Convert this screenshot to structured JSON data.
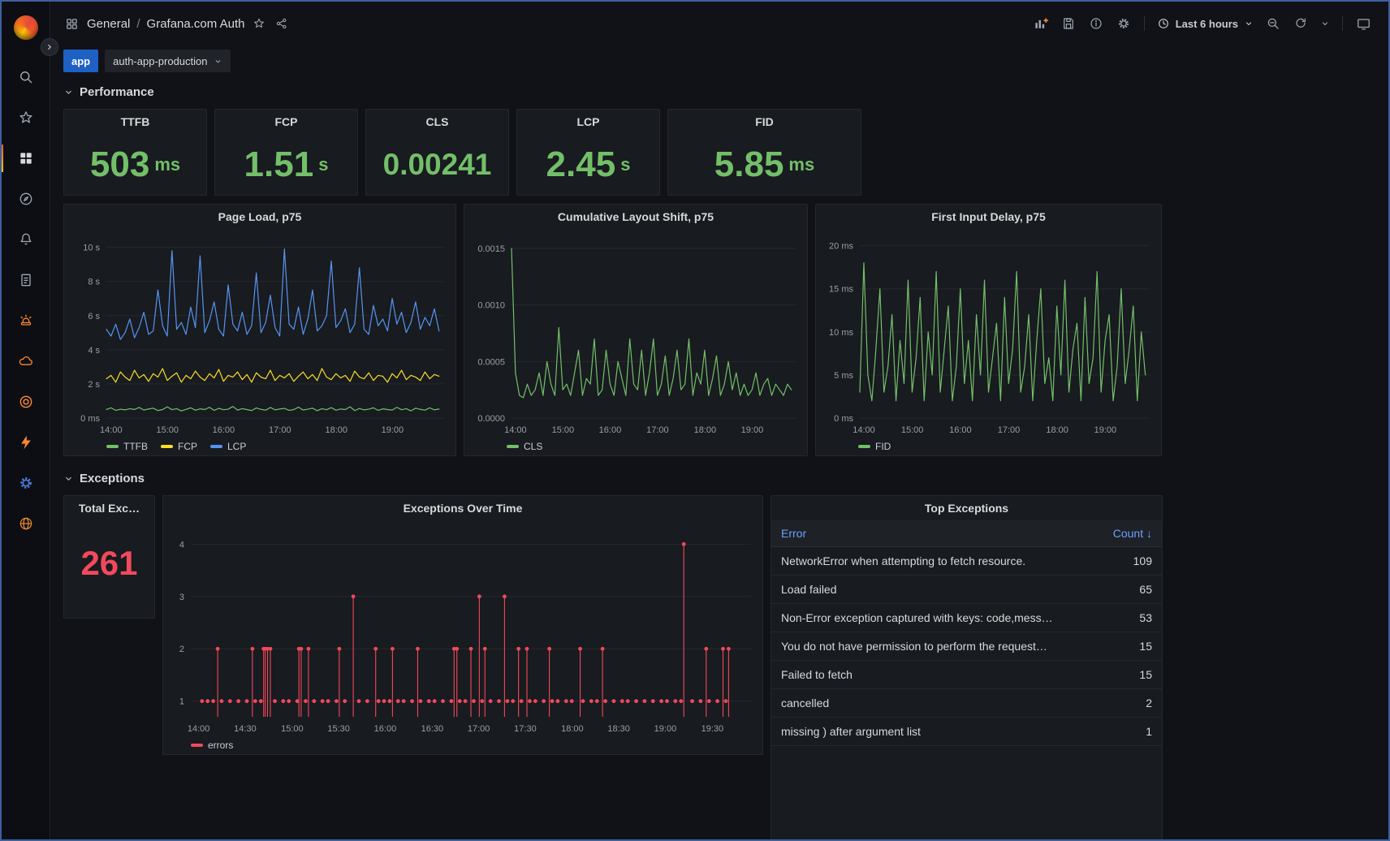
{
  "colors": {
    "green": "#73bf69",
    "yellow": "#fade2a",
    "blue": "#5794f2",
    "red": "#f2495c",
    "link_blue": "#6e9fff",
    "accent_orange": "#ff8833",
    "panel_bg": "#181b1f",
    "page_bg": "#111217"
  },
  "sidebar": {
    "items": [
      "grafana-logo",
      "search",
      "starred",
      "dashboards",
      "explore",
      "alerting",
      "document",
      "siren",
      "cloud",
      "target",
      "bolt",
      "gear",
      "globe"
    ],
    "active_item": "dashboards"
  },
  "header": {
    "breadcrumb": {
      "section": "General",
      "separator": "/",
      "title": "Grafana.com Auth"
    },
    "time_range": "Last 6 hours"
  },
  "variables": {
    "label": "app",
    "value": "auth-app-production"
  },
  "sections": {
    "performance": "Performance",
    "exceptions": "Exceptions"
  },
  "stats": [
    {
      "title": "TTFB",
      "value": "503",
      "unit": "ms"
    },
    {
      "title": "FCP",
      "value": "1.51",
      "unit": "s"
    },
    {
      "title": "CLS",
      "value": "0.00241",
      "unit": ""
    },
    {
      "title": "LCP",
      "value": "2.45",
      "unit": "s"
    },
    {
      "title": "FID",
      "value": "5.85",
      "unit": "ms"
    }
  ],
  "total_exceptions": {
    "title": "Total Exc…",
    "value": "261"
  },
  "top_exceptions": {
    "title": "Top Exceptions",
    "columns": {
      "error": "Error",
      "count": "Count ↓"
    },
    "rows": [
      {
        "error": "NetworkError when attempting to fetch resource.",
        "count": "109"
      },
      {
        "error": "Load failed",
        "count": "65"
      },
      {
        "error": "Non-Error exception captured with keys: code,mess…",
        "count": "53"
      },
      {
        "error": "You do not have permission to perform the request…",
        "count": "15"
      },
      {
        "error": "Failed to fetch",
        "count": "15"
      },
      {
        "error": "cancelled",
        "count": "2"
      },
      {
        "error": "missing ) after argument list",
        "count": "1"
      }
    ]
  },
  "chart_data": [
    {
      "type": "line",
      "title": "Page Load, p75",
      "ylim": [
        0,
        10.6
      ],
      "ml": 48,
      "yticks": [
        {
          "v": 0,
          "label": "0 ms"
        },
        {
          "v": 2,
          "label": "2 s"
        },
        {
          "v": 4,
          "label": "4 s"
        },
        {
          "v": 6,
          "label": "6 s"
        },
        {
          "v": 8,
          "label": "8 s"
        },
        {
          "v": 10,
          "label": "10 s"
        }
      ],
      "xticks": [
        {
          "f": 0.014,
          "label": "14:00"
        },
        {
          "f": 0.181,
          "label": "15:00"
        },
        {
          "f": 0.347,
          "label": "16:00"
        },
        {
          "f": 0.514,
          "label": "17:00"
        },
        {
          "f": 0.681,
          "label": "18:00"
        },
        {
          "f": 0.847,
          "label": "19:00"
        }
      ],
      "series": [
        {
          "name": "TTFB",
          "color": "#73bf69",
          "values": [
            0.5,
            0.6,
            0.45,
            0.52,
            0.48,
            0.55,
            0.5,
            0.62,
            0.47,
            0.53,
            0.58,
            0.44,
            0.5,
            0.66,
            0.49,
            0.55,
            0.42,
            0.51,
            0.6,
            0.46,
            0.54,
            0.5,
            0.63,
            0.45,
            0.57,
            0.49,
            0.52,
            0.68,
            0.47,
            0.55,
            0.5,
            0.44,
            0.59,
            0.51,
            0.46,
            0.62,
            0.48,
            0.53,
            0.57,
            0.45,
            0.5,
            0.64,
            0.47,
            0.52,
            0.58,
            0.43,
            0.55,
            0.49,
            0.61,
            0.46,
            0.53,
            0.5,
            0.66,
            0.44,
            0.56,
            0.48,
            0.52,
            0.6,
            0.45,
            0.54,
            0.5,
            0.47,
            0.63,
            0.49,
            0.55,
            0.42,
            0.58,
            0.51,
            0.46,
            0.6,
            0.48,
            0.53
          ]
        },
        {
          "name": "FCP",
          "color": "#fade2a",
          "values": [
            2.3,
            2.5,
            2.1,
            2.7,
            2.4,
            2.2,
            2.8,
            2.35,
            2.55,
            2.15,
            2.6,
            2.4,
            2.9,
            2.2,
            2.45,
            2.65,
            2.1,
            2.5,
            2.3,
            2.75,
            2.4,
            2.2,
            2.6,
            2.35,
            2.85,
            2.15,
            2.5,
            2.4,
            2.7,
            2.25,
            2.55,
            2.1,
            2.65,
            2.4,
            2.3,
            2.8,
            2.2,
            2.5,
            2.35,
            2.6,
            2.15,
            2.45,
            2.7,
            2.3,
            2.55,
            2.2,
            2.9,
            2.4,
            2.25,
            2.6,
            2.35,
            2.5,
            2.15,
            2.75,
            2.4,
            2.3,
            2.65,
            2.2,
            2.5,
            2.45,
            2.1,
            2.6,
            2.35,
            2.8,
            2.25,
            2.5,
            2.4,
            2.2,
            2.7,
            2.3,
            2.55,
            2.45
          ]
        },
        {
          "name": "LCP",
          "color": "#5794f2",
          "values": [
            5.2,
            4.8,
            5.5,
            4.6,
            5.0,
            5.8,
            4.7,
            5.3,
            6.2,
            4.9,
            5.1,
            7.5,
            5.4,
            4.8,
            9.8,
            5.2,
            5.6,
            4.9,
            6.5,
            5.3,
            9.5,
            5.0,
            5.7,
            6.8,
            5.2,
            4.8,
            7.8,
            5.5,
            5.1,
            6.2,
            4.9,
            5.4,
            8.5,
            5.0,
            5.6,
            7.2,
            5.3,
            4.8,
            9.9,
            5.5,
            5.2,
            6.5,
            4.9,
            5.8,
            7.5,
            5.1,
            5.4,
            6.0,
            9.2,
            5.3,
            5.7,
            6.4,
            5.0,
            5.5,
            8.8,
            5.2,
            4.9,
            6.6,
            5.4,
            5.8,
            5.1,
            7.0,
            5.5,
            6.2,
            5.0,
            5.6,
            6.8,
            5.2,
            5.9,
            5.4,
            6.4,
            5.1
          ]
        }
      ]
    },
    {
      "type": "line",
      "title": "Cumulative Layout Shift, p75",
      "ylim": [
        0,
        0.0016
      ],
      "ml": 54,
      "yticks": [
        {
          "v": 0,
          "label": "0.0000"
        },
        {
          "v": 0.0005,
          "label": "0.0005"
        },
        {
          "v": 0.001,
          "label": "0.0010"
        },
        {
          "v": 0.0015,
          "label": "0.0015"
        }
      ],
      "xticks": [
        {
          "f": 0.014,
          "label": "14:00"
        },
        {
          "f": 0.181,
          "label": "15:00"
        },
        {
          "f": 0.347,
          "label": "16:00"
        },
        {
          "f": 0.514,
          "label": "17:00"
        },
        {
          "f": 0.681,
          "label": "18:00"
        },
        {
          "f": 0.847,
          "label": "19:00"
        }
      ],
      "series": [
        {
          "name": "CLS",
          "color": "#73bf69",
          "values": [
            0.0015,
            0.0004,
            0.0002,
            0.00018,
            0.0003,
            0.0002,
            0.00025,
            0.0004,
            0.0002,
            0.0005,
            0.0003,
            0.0002,
            0.0008,
            0.00025,
            0.0003,
            0.0002,
            0.0004,
            0.0006,
            0.0002,
            0.00035,
            0.0003,
            0.0007,
            0.0002,
            0.00025,
            0.0006,
            0.0003,
            0.0002,
            0.0005,
            0.00035,
            0.0002,
            0.0007,
            0.0003,
            0.00025,
            0.0006,
            0.0002,
            0.0004,
            0.0007,
            0.0002,
            0.0003,
            0.00055,
            0.0002,
            0.00035,
            0.0006,
            0.00025,
            0.0003,
            0.0007,
            0.0002,
            0.0004,
            0.0003,
            0.0006,
            0.0002,
            0.00035,
            0.00055,
            0.0002,
            0.0003,
            0.0005,
            0.00025,
            0.0004,
            0.0002,
            0.0003,
            0.0002,
            0.00025,
            0.0004,
            0.0002,
            0.0003,
            0.00035,
            0.0002,
            0.0003,
            0.00025,
            0.0002,
            0.0003,
            0.00025
          ]
        }
      ]
    },
    {
      "type": "line",
      "title": "First Input Delay, p75",
      "ylim": [
        0,
        21
      ],
      "ml": 50,
      "yticks": [
        {
          "v": 0,
          "label": "0 ms"
        },
        {
          "v": 5,
          "label": "5 ms"
        },
        {
          "v": 10,
          "label": "10 ms"
        },
        {
          "v": 15,
          "label": "15 ms"
        },
        {
          "v": 20,
          "label": "20 ms"
        }
      ],
      "xticks": [
        {
          "f": 0.014,
          "label": "14:00"
        },
        {
          "f": 0.181,
          "label": "15:00"
        },
        {
          "f": 0.347,
          "label": "16:00"
        },
        {
          "f": 0.514,
          "label": "17:00"
        },
        {
          "f": 0.681,
          "label": "18:00"
        },
        {
          "f": 0.847,
          "label": "19:00"
        }
      ],
      "series": [
        {
          "name": "FID",
          "color": "#73bf69",
          "values": [
            3,
            18,
            5,
            2,
            8,
            15,
            3,
            6,
            12,
            2,
            9,
            4,
            16,
            3,
            7,
            14,
            2,
            10,
            5,
            17,
            3,
            8,
            13,
            2,
            6,
            15,
            4,
            9,
            2,
            12,
            5,
            16,
            3,
            7,
            11,
            2,
            14,
            4,
            8,
            17,
            3,
            6,
            12,
            2,
            9,
            15,
            4,
            7,
            2,
            13,
            5,
            16,
            3,
            8,
            11,
            2,
            14,
            4,
            7,
            17,
            3,
            9,
            12,
            2,
            6,
            15,
            4,
            8,
            13,
            2,
            10,
            5
          ]
        }
      ]
    },
    {
      "type": "scatter-spike",
      "title": "Exceptions Over Time",
      "ylim": [
        0.7,
        4.3
      ],
      "ml": 30,
      "color": "#f2495c",
      "legend": [
        {
          "name": "errors",
          "color": "#f2495c"
        }
      ],
      "yticks": [
        {
          "v": 1,
          "label": "1"
        },
        {
          "v": 2,
          "label": "2"
        },
        {
          "v": 3,
          "label": "3"
        },
        {
          "v": 4,
          "label": "4"
        }
      ],
      "xticks": [
        {
          "f": 0.014,
          "label": "14:00"
        },
        {
          "f": 0.097,
          "label": "14:30"
        },
        {
          "f": 0.181,
          "label": "15:00"
        },
        {
          "f": 0.264,
          "label": "15:30"
        },
        {
          "f": 0.347,
          "label": "16:00"
        },
        {
          "f": 0.431,
          "label": "16:30"
        },
        {
          "f": 0.514,
          "label": "17:00"
        },
        {
          "f": 0.597,
          "label": "17:30"
        },
        {
          "f": 0.681,
          "label": "18:00"
        },
        {
          "f": 0.764,
          "label": "18:30"
        },
        {
          "f": 0.847,
          "label": "19:00"
        },
        {
          "f": 0.931,
          "label": "19:30"
        }
      ],
      "points": [
        [
          0.02,
          1
        ],
        [
          0.03,
          1
        ],
        [
          0.04,
          1
        ],
        [
          0.048,
          2
        ],
        [
          0.055,
          1
        ],
        [
          0.07,
          1
        ],
        [
          0.085,
          1
        ],
        [
          0.1,
          1
        ],
        [
          0.11,
          2
        ],
        [
          0.115,
          1
        ],
        [
          0.125,
          1
        ],
        [
          0.13,
          2
        ],
        [
          0.133,
          2
        ],
        [
          0.137,
          2
        ],
        [
          0.142,
          2
        ],
        [
          0.15,
          1
        ],
        [
          0.165,
          1
        ],
        [
          0.175,
          1
        ],
        [
          0.19,
          1
        ],
        [
          0.193,
          2
        ],
        [
          0.197,
          2
        ],
        [
          0.205,
          1
        ],
        [
          0.21,
          2
        ],
        [
          0.22,
          1
        ],
        [
          0.235,
          1
        ],
        [
          0.245,
          1
        ],
        [
          0.26,
          1
        ],
        [
          0.265,
          2
        ],
        [
          0.275,
          1
        ],
        [
          0.29,
          3
        ],
        [
          0.3,
          1
        ],
        [
          0.315,
          1
        ],
        [
          0.33,
          2
        ],
        [
          0.335,
          1
        ],
        [
          0.345,
          1
        ],
        [
          0.355,
          1
        ],
        [
          0.36,
          2
        ],
        [
          0.37,
          1
        ],
        [
          0.38,
          1
        ],
        [
          0.395,
          1
        ],
        [
          0.405,
          2
        ],
        [
          0.41,
          1
        ],
        [
          0.425,
          1
        ],
        [
          0.435,
          1
        ],
        [
          0.45,
          1
        ],
        [
          0.465,
          1
        ],
        [
          0.47,
          2
        ],
        [
          0.475,
          2
        ],
        [
          0.48,
          1
        ],
        [
          0.49,
          1
        ],
        [
          0.5,
          2
        ],
        [
          0.505,
          1
        ],
        [
          0.515,
          3
        ],
        [
          0.52,
          1
        ],
        [
          0.525,
          2
        ],
        [
          0.535,
          1
        ],
        [
          0.55,
          1
        ],
        [
          0.56,
          3
        ],
        [
          0.565,
          1
        ],
        [
          0.575,
          1
        ],
        [
          0.585,
          2
        ],
        [
          0.59,
          1
        ],
        [
          0.6,
          2
        ],
        [
          0.605,
          1
        ],
        [
          0.615,
          1
        ],
        [
          0.63,
          1
        ],
        [
          0.64,
          2
        ],
        [
          0.645,
          1
        ],
        [
          0.655,
          1
        ],
        [
          0.67,
          1
        ],
        [
          0.68,
          1
        ],
        [
          0.695,
          2
        ],
        [
          0.7,
          1
        ],
        [
          0.715,
          1
        ],
        [
          0.725,
          1
        ],
        [
          0.735,
          2
        ],
        [
          0.74,
          1
        ],
        [
          0.755,
          1
        ],
        [
          0.77,
          1
        ],
        [
          0.78,
          1
        ],
        [
          0.795,
          1
        ],
        [
          0.81,
          1
        ],
        [
          0.825,
          1
        ],
        [
          0.84,
          1
        ],
        [
          0.85,
          1
        ],
        [
          0.865,
          1
        ],
        [
          0.875,
          1
        ],
        [
          0.88,
          4
        ],
        [
          0.895,
          1
        ],
        [
          0.91,
          1
        ],
        [
          0.92,
          2
        ],
        [
          0.925,
          1
        ],
        [
          0.94,
          1
        ],
        [
          0.95,
          2
        ],
        [
          0.955,
          1
        ],
        [
          0.96,
          2
        ]
      ]
    }
  ]
}
